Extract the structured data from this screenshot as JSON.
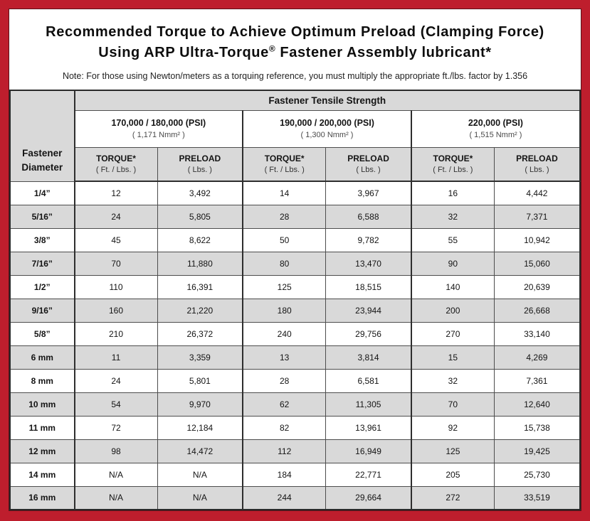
{
  "colors": {
    "frame_red": "#be1e2d",
    "header_gray": "#d9d9d9",
    "stripe_gray": "#d9d9d9",
    "border_dark": "#2e2e2e"
  },
  "title": {
    "line1": "Recommended Torque to Achieve Optimum Preload (Clamping Force)",
    "line2_pre": "Using ARP Ultra-Torque",
    "line2_reg": "®",
    "line2_post": " Fastener Assembly lubricant*",
    "note": "Note: For those using Newton/meters as a torquing reference, you must multiply the appropriate ft./lbs. factor by 1.356"
  },
  "table": {
    "corner_line1": "Fastener",
    "corner_line2": "Diameter",
    "tensile_strength_header": "Fastener Tensile Strength",
    "groups": [
      {
        "psi": "170,000 / 180,000 (PSI)",
        "nmm": "( 1,171 Nmm² )"
      },
      {
        "psi": "190,000 / 200,000 (PSI)",
        "nmm": "( 1,300 Nmm² )"
      },
      {
        "psi": "220,000 (PSI)",
        "nmm": "( 1,515 Nmm² )"
      }
    ],
    "column_headers": {
      "torque_label": "TORQUE*",
      "torque_unit": "( Ft. / Lbs. )",
      "preload_label": "PRELOAD",
      "preload_unit": "( Lbs. )"
    },
    "rows": [
      {
        "diameter": "1/4”",
        "values": [
          "12",
          "3,492",
          "14",
          "3,967",
          "16",
          "4,442"
        ]
      },
      {
        "diameter": "5/16”",
        "values": [
          "24",
          "5,805",
          "28",
          "6,588",
          "32",
          "7,371"
        ]
      },
      {
        "diameter": "3/8”",
        "values": [
          "45",
          "8,622",
          "50",
          "9,782",
          "55",
          "10,942"
        ]
      },
      {
        "diameter": "7/16”",
        "values": [
          "70",
          "11,880",
          "80",
          "13,470",
          "90",
          "15,060"
        ]
      },
      {
        "diameter": "1/2”",
        "values": [
          "110",
          "16,391",
          "125",
          "18,515",
          "140",
          "20,639"
        ]
      },
      {
        "diameter": "9/16”",
        "values": [
          "160",
          "21,220",
          "180",
          "23,944",
          "200",
          "26,668"
        ]
      },
      {
        "diameter": "5/8”",
        "values": [
          "210",
          "26,372",
          "240",
          "29,756",
          "270",
          "33,140"
        ]
      },
      {
        "diameter": "6 mm",
        "values": [
          "11",
          "3,359",
          "13",
          "3,814",
          "15",
          "4,269"
        ]
      },
      {
        "diameter": "8 mm",
        "values": [
          "24",
          "5,801",
          "28",
          "6,581",
          "32",
          "7,361"
        ]
      },
      {
        "diameter": "10 mm",
        "values": [
          "54",
          "9,970",
          "62",
          "11,305",
          "70",
          "12,640"
        ]
      },
      {
        "diameter": "11 mm",
        "values": [
          "72",
          "12,184",
          "82",
          "13,961",
          "92",
          "15,738"
        ]
      },
      {
        "diameter": "12 mm",
        "values": [
          "98",
          "14,472",
          "112",
          "16,949",
          "125",
          "19,425"
        ]
      },
      {
        "diameter": "14 mm",
        "values": [
          "N/A",
          "N/A",
          "184",
          "22,771",
          "205",
          "25,730"
        ]
      },
      {
        "diameter": "16 mm",
        "values": [
          "N/A",
          "N/A",
          "244",
          "29,664",
          "272",
          "33,519"
        ]
      }
    ]
  }
}
